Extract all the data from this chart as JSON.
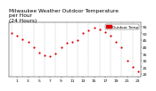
{
  "title": "Milwaukee Weather Outdoor Temperature\nper Hour\n(24 Hours)",
  "hours": [
    0,
    1,
    2,
    3,
    4,
    5,
    6,
    7,
    8,
    9,
    10,
    11,
    12,
    13,
    14,
    15,
    16,
    17,
    18,
    19,
    20,
    21,
    22,
    23
  ],
  "temps": [
    50,
    48,
    46,
    44,
    40,
    36,
    34,
    33,
    35,
    40,
    43,
    44,
    45,
    50,
    52,
    54,
    53,
    51,
    48,
    44,
    40,
    30,
    25,
    22
  ],
  "dot_color": "#dd0000",
  "bg_color": "#ffffff",
  "grid_color": "#aaaaaa",
  "ylabel_color": "#000000",
  "ylim": [
    18,
    58
  ],
  "yticks": [
    20,
    25,
    30,
    35,
    40,
    45,
    50,
    55
  ],
  "legend_label": "Outdoor Temp",
  "legend_color": "#dd0000",
  "title_fontsize": 4.2,
  "tick_fontsize": 3.2,
  "marker_size": 2.5,
  "xtick_every": 2
}
